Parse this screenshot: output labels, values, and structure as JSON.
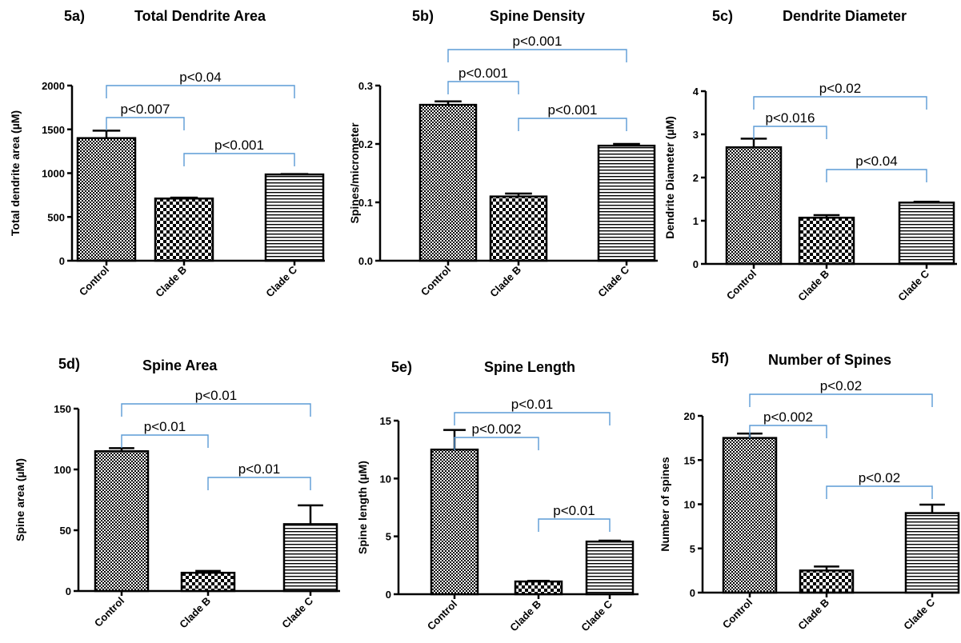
{
  "colors": {
    "bracket": "#5b9bd5",
    "axis": "#000000",
    "background": "#ffffff"
  },
  "chart_data": [
    {
      "type": "bar",
      "panel_label": "5a)",
      "title": "Total Dendrite Area",
      "ylabel": "Total dendrite area (µM)",
      "categories": [
        "Control",
        "Clade B",
        "Clade C"
      ],
      "values": [
        1400,
        710,
        985
      ],
      "error": [
        85,
        10,
        5
      ],
      "patterns": [
        "checker-fine",
        "checker-coarse",
        "horizontal-lines"
      ],
      "ylim": [
        0,
        2000
      ],
      "yticks": [
        "0",
        "500",
        "1000",
        "1500",
        "2000"
      ],
      "comparisons": [
        {
          "from": 0,
          "to": 1,
          "label": "p<0.007"
        },
        {
          "from": 1,
          "to": 2,
          "label": "p<0.001"
        },
        {
          "from": 0,
          "to": 2,
          "label": "p<0.04"
        }
      ]
    },
    {
      "type": "bar",
      "panel_label": "5b)",
      "title": "Spine Density",
      "ylabel": "Spines/micrometer",
      "categories": [
        "Control",
        "Clade B",
        "Clade C"
      ],
      "values": [
        0.267,
        0.11,
        0.197
      ],
      "error": [
        0.006,
        0.005,
        0.003
      ],
      "patterns": [
        "checker-fine",
        "checker-coarse",
        "horizontal-lines"
      ],
      "ylim": [
        0,
        0.3
      ],
      "yticks": [
        "0.0",
        "0.1",
        "0.2",
        "0.3"
      ],
      "comparisons": [
        {
          "from": 0,
          "to": 1,
          "label": "p<0.001"
        },
        {
          "from": 1,
          "to": 2,
          "label": "p<0.001"
        },
        {
          "from": 0,
          "to": 2,
          "label": "p<0.001"
        }
      ]
    },
    {
      "type": "bar",
      "panel_label": "5c)",
      "title": "Dendrite Diameter",
      "ylabel": "Dendrite Diameter (µM)",
      "categories": [
        "Control",
        "Clade B",
        "Clade C"
      ],
      "values": [
        2.7,
        1.07,
        1.42
      ],
      "error": [
        0.2,
        0.06,
        0.02
      ],
      "patterns": [
        "checker-fine",
        "checker-coarse",
        "horizontal-lines"
      ],
      "ylim": [
        0,
        4
      ],
      "yticks": [
        "0",
        "1",
        "2",
        "3",
        "4"
      ],
      "comparisons": [
        {
          "from": 0,
          "to": 1,
          "label": "p<0.016"
        },
        {
          "from": 1,
          "to": 2,
          "label": "p<0.04"
        },
        {
          "from": 0,
          "to": 2,
          "label": "p<0.02"
        }
      ]
    },
    {
      "type": "bar",
      "panel_label": "5d)",
      "title": "Spine Area",
      "ylabel": "Spine area (µM)",
      "categories": [
        "Control",
        "Clade B",
        "Clade C"
      ],
      "values": [
        115,
        15,
        55
      ],
      "error": [
        2.5,
        1.5,
        15.5
      ],
      "patterns": [
        "checker-fine",
        "checker-coarse",
        "horizontal-lines"
      ],
      "ylim": [
        0,
        150
      ],
      "yticks": [
        "0",
        "50",
        "100",
        "150"
      ],
      "comparisons": [
        {
          "from": 0,
          "to": 1,
          "label": "p<0.01"
        },
        {
          "from": 1,
          "to": 2,
          "label": "p<0.01"
        },
        {
          "from": 0,
          "to": 2,
          "label": "p<0.01"
        }
      ]
    },
    {
      "type": "bar",
      "panel_label": "5e)",
      "title": "Spine Length",
      "ylabel": "Spine length (µM)",
      "categories": [
        "Control",
        "Clade B",
        "Clade C"
      ],
      "values": [
        12.5,
        1.1,
        4.55
      ],
      "error": [
        1.7,
        0.06,
        0.08
      ],
      "patterns": [
        "checker-fine",
        "checker-coarse",
        "horizontal-lines"
      ],
      "ylim": [
        0,
        15
      ],
      "yticks": [
        "0",
        "5",
        "10",
        "15"
      ],
      "comparisons": [
        {
          "from": 0,
          "to": 1,
          "label": "p<0.002"
        },
        {
          "from": 1,
          "to": 2,
          "label": "p<0.01"
        },
        {
          "from": 0,
          "to": 2,
          "label": "p<0.01"
        }
      ]
    },
    {
      "type": "bar",
      "panel_label": "5f)",
      "title": "Number of Spines",
      "ylabel": "Number of spines",
      "categories": [
        "Control",
        "Clade B",
        "Clade C"
      ],
      "values": [
        17.5,
        2.5,
        9.0
      ],
      "error": [
        0.5,
        0.45,
        0.95
      ],
      "patterns": [
        "checker-fine",
        "checker-coarse",
        "horizontal-lines"
      ],
      "ylim": [
        0,
        20
      ],
      "yticks": [
        "0",
        "5",
        "10",
        "15",
        "20"
      ],
      "comparisons": [
        {
          "from": 0,
          "to": 1,
          "label": "p<0.002"
        },
        {
          "from": 1,
          "to": 2,
          "label": "p<0.02"
        },
        {
          "from": 0,
          "to": 2,
          "label": "p<0.02"
        }
      ]
    }
  ]
}
